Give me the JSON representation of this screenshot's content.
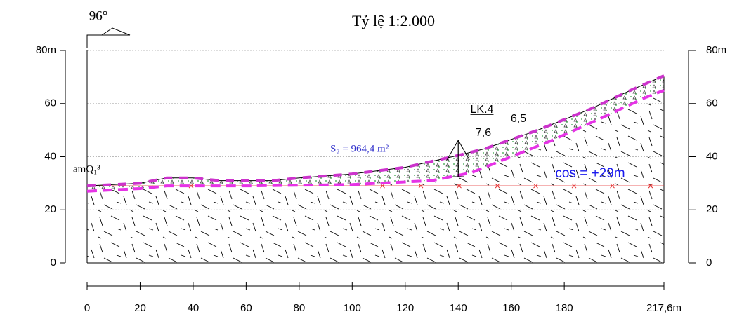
{
  "chart_data": {
    "type": "profile",
    "title": "Tỷ lệ 1:2.000",
    "direction_label": "96°",
    "xlim": [
      0,
      217.6
    ],
    "ylim": [
      0,
      80
    ],
    "xticks": [
      0,
      20,
      40,
      60,
      80,
      100,
      120,
      140,
      160,
      180,
      {
        "value": 217.6,
        "label": "217,6m"
      }
    ],
    "yticks": [
      0,
      20,
      40,
      60,
      {
        "value": 80,
        "label": "80m"
      }
    ],
    "grid": true,
    "ground": {
      "color": "#cc33cc",
      "x": [
        0,
        10,
        20,
        30,
        40,
        50,
        70,
        80,
        100,
        120,
        140,
        150,
        170,
        190,
        205,
        217.6
      ],
      "values": [
        29,
        29.5,
        30,
        32,
        32,
        31,
        31,
        32,
        33.5,
        36,
        40.5,
        43,
        50,
        58,
        65,
        70.5
      ]
    },
    "layer_base": {
      "color": "#e633e6",
      "x": [
        0,
        20,
        30,
        60,
        100,
        130,
        145,
        160,
        175,
        195,
        210,
        217.6
      ],
      "values": [
        27,
        28,
        29,
        29,
        29.5,
        31,
        34,
        40,
        46,
        55,
        62,
        65
      ]
    },
    "reference_level": {
      "value": 29,
      "label": "cos = +29m",
      "color": "#e53333"
    },
    "layer_label": "amQ₁³",
    "area_label": "S₂ = 964,4 m²",
    "borehole": {
      "label": "LK.4",
      "x": 140,
      "top_label": "6,5",
      "bottom_label": "7,6"
    }
  }
}
